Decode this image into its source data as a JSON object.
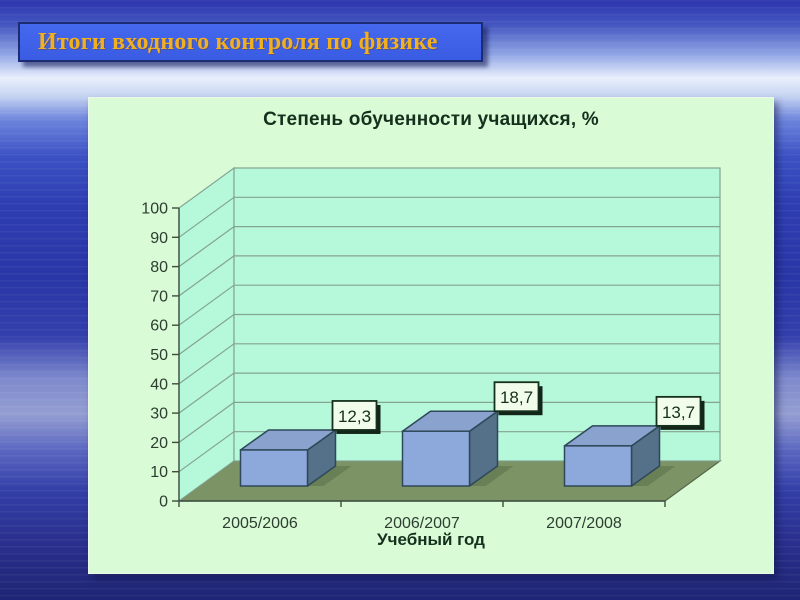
{
  "slide": {
    "title": "Итоги входного контроля по физике"
  },
  "chart_data": {
    "type": "bar",
    "variant": "3d-column",
    "title": "Степень обученности учащихся, %",
    "xlabel": "Учебный год",
    "ylabel": "",
    "categories": [
      "2005/2006",
      "2006/2007",
      "2007/2008"
    ],
    "values": [
      12.3,
      18.7,
      13.7
    ],
    "value_labels": [
      "12,3",
      "18,7",
      "13,7"
    ],
    "ylim": [
      0,
      100
    ],
    "ytick_step": 10,
    "yticks": [
      0,
      10,
      20,
      30,
      40,
      50,
      60,
      70,
      80,
      90,
      100
    ],
    "grid": true,
    "legend": "none"
  },
  "colors": {
    "banner_bg": "#3e63e8",
    "banner_border": "#1c2c74",
    "banner_text": "#f2b01e",
    "panel_bg": "#d9fbd6",
    "wall": "#b5f8da",
    "grid": "#85a391",
    "floor": "#7b9365",
    "floor_edge": "#54674a",
    "axis": "#3f4d41",
    "tick_text": "#2e3d31",
    "text_dark": "#15301d",
    "bar_front": "#8da8da",
    "bar_top": "#89a2ce",
    "bar_side": "#557089",
    "bar_outline": "#2e4859",
    "label_bg": "#f1fdea",
    "label_border": "#15301d",
    "label_shadow": "#132419"
  }
}
